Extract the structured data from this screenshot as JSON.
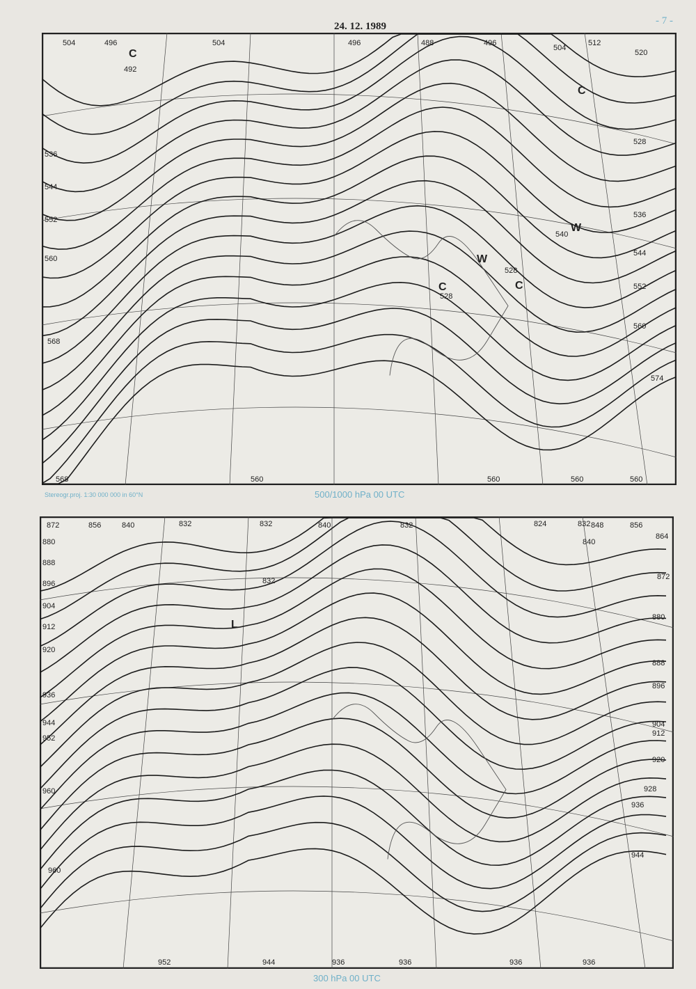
{
  "header": {
    "date": "24. 12. 1989",
    "page_number": "- 7 -"
  },
  "projection_note": "Stereogr.proj. 1:30 000 000 in 60°N",
  "map_500": {
    "caption": "500/1000 hPa 00 UTC",
    "contour_labels": [
      "504",
      "496",
      "504",
      "496",
      "488",
      "496",
      "504",
      "512",
      "520",
      "528",
      "536",
      "544",
      "552",
      "560",
      "560",
      "560",
      "560",
      "560",
      "568",
      "536",
      "544",
      "552",
      "560",
      "568",
      "492",
      "528",
      "528",
      "540",
      "574"
    ],
    "centers": [
      "C",
      "C",
      "C",
      "C",
      "W",
      "W"
    ]
  },
  "map_300": {
    "caption": "300 hPa 00 UTC",
    "contour_labels": [
      "872",
      "856",
      "840",
      "832",
      "832",
      "840",
      "832",
      "824",
      "832",
      "848",
      "856",
      "864",
      "872",
      "880",
      "888",
      "896",
      "904",
      "912",
      "920",
      "928",
      "936",
      "944",
      "880",
      "888",
      "896",
      "904",
      "912",
      "920",
      "936",
      "944",
      "952",
      "960",
      "960",
      "952",
      "944",
      "936",
      "936",
      "936",
      "936",
      "832",
      "840"
    ],
    "centers": [
      "L"
    ]
  },
  "colors": {
    "ink": "#222222",
    "caption": "#6fb0c8",
    "paper": "#e9e7e2"
  }
}
